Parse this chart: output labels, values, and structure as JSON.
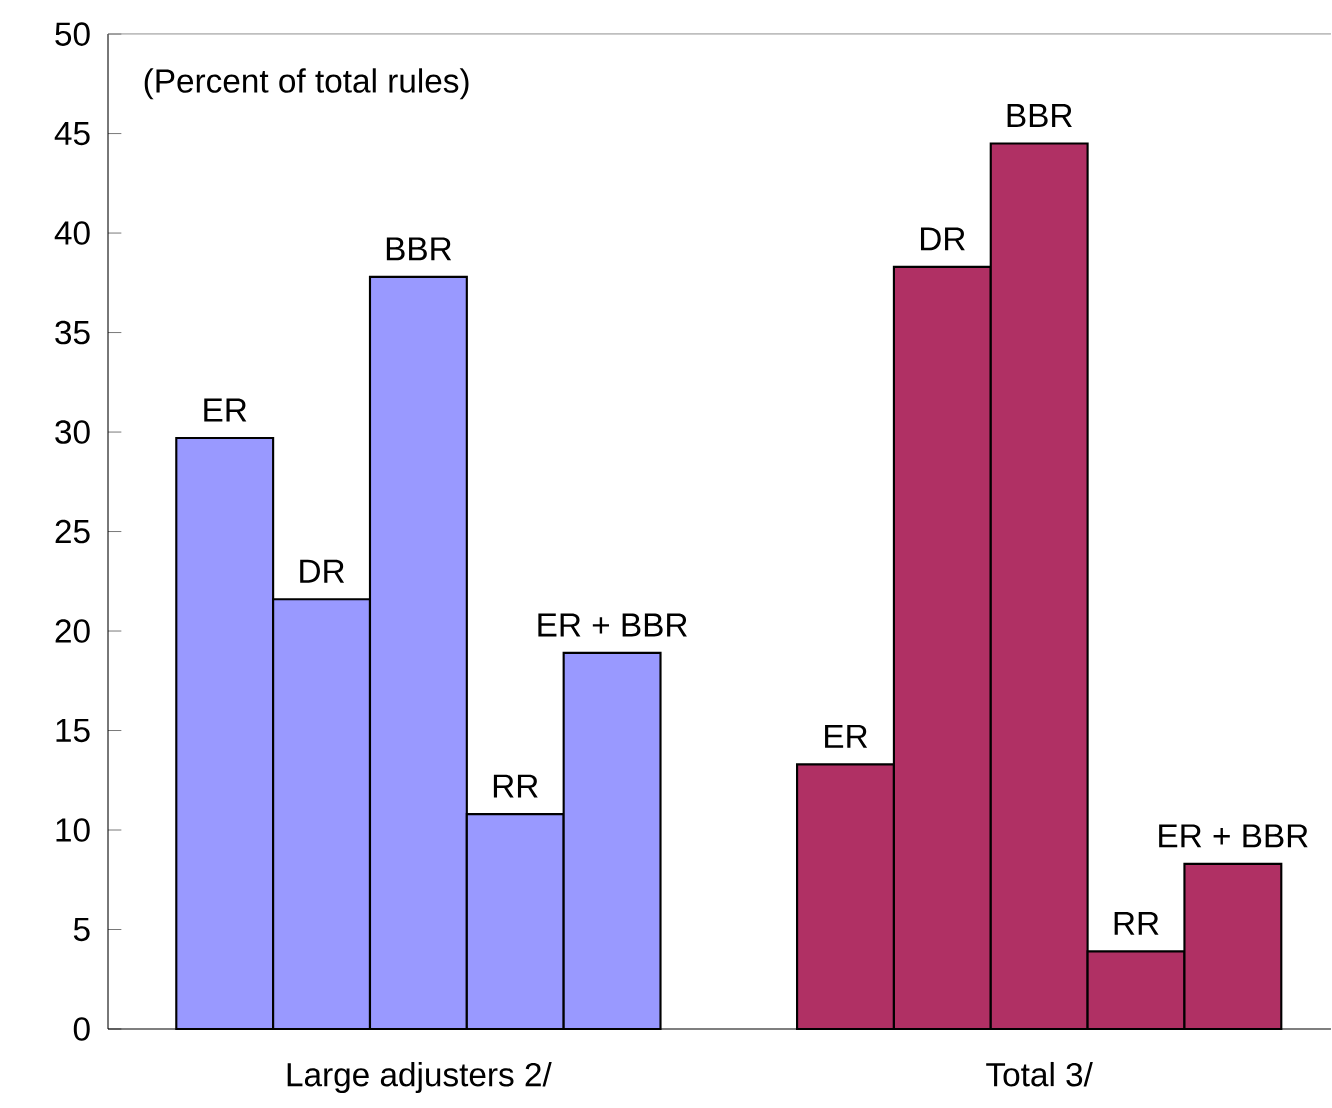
{
  "chart_data": {
    "type": "bar",
    "categories": [
      "Large adjusters 2/",
      "Total 3/"
    ],
    "series": [
      {
        "name": "ER",
        "colors": [
          "#9999ff",
          "#b03064"
        ],
        "values": [
          29.7,
          13.3
        ]
      },
      {
        "name": "DR",
        "colors": [
          "#9999ff",
          "#b03064"
        ],
        "values": [
          21.6,
          38.3
        ]
      },
      {
        "name": "BBR",
        "colors": [
          "#9999ff",
          "#b03064"
        ],
        "values": [
          37.8,
          44.5
        ]
      },
      {
        "name": "RR",
        "colors": [
          "#9999ff",
          "#b03064"
        ],
        "values": [
          10.8,
          3.9
        ]
      },
      {
        "name": "ER + BBR",
        "colors": [
          "#9999ff",
          "#b03064"
        ],
        "values": [
          18.9,
          8.3
        ]
      }
    ],
    "annotations": [
      "(Percent of total rules)"
    ],
    "ylim": [
      0,
      50
    ],
    "yticks": [
      0,
      5,
      10,
      15,
      20,
      25,
      30,
      35,
      40,
      45,
      50
    ],
    "grid": false
  }
}
